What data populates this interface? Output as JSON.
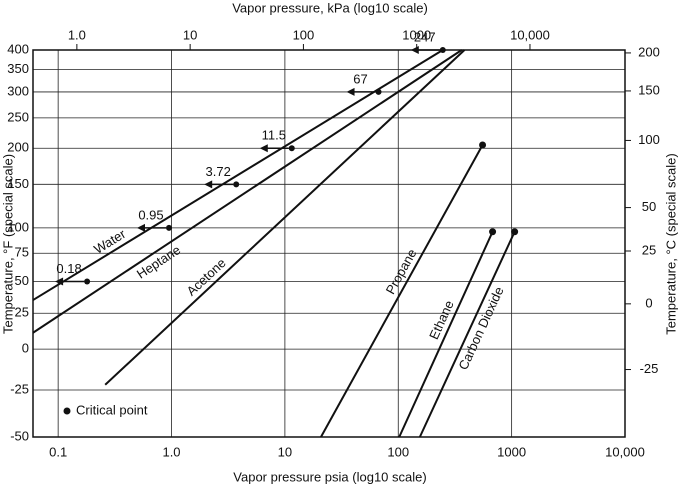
{
  "chart_data": {
    "type": "line",
    "top_axis_label": "Vapor pressure, kPa (log10 scale)",
    "x_label": "Vapor pressure psia (log10 scale)",
    "y_label": "Temperature, °F (special scale)",
    "y2_label": "Temperature, °C (special scale)",
    "critical_point_label": "Critical point",
    "xscale": "log",
    "yscale": "special",
    "grid": true,
    "color": "#111111",
    "xlim": [
      0.06,
      10000
    ],
    "xticks": [
      0.1,
      {
        "value": 1,
        "label": "1.0"
      },
      10,
      100,
      1000,
      {
        "value": 10000,
        "label": "10,000"
      }
    ],
    "x2lim": [
      0.41,
      69000
    ],
    "x2ticks": [
      {
        "value": 1,
        "label": "1.0"
      },
      10,
      100,
      1000,
      {
        "value": 10000,
        "label": "10,000"
      }
    ],
    "ylim": [
      -50,
      400
    ],
    "yticks": [
      400,
      350,
      300,
      250,
      200,
      150,
      100,
      75,
      50,
      25,
      0,
      -25,
      -50
    ],
    "y2lim": [
      -45.6,
      204.4
    ],
    "y2ticks": [
      200,
      150,
      100,
      50,
      25,
      0,
      -25
    ],
    "series": [
      {
        "name": "Water",
        "x": [
          0.06,
          247
        ],
        "values": [
          35,
          400
        ],
        "critical_point": false
      },
      {
        "name": "Heptane",
        "x": [
          0.06,
          363
        ],
        "values": [
          11,
          400
        ],
        "critical_point": false
      },
      {
        "name": "Acetone",
        "x": [
          0.26,
          384
        ],
        "values": [
          -22,
          400
        ],
        "critical_point": false
      },
      {
        "name": "Propane",
        "x": [
          20.8,
          554
        ],
        "values": [
          -50,
          205
        ],
        "critical_point": true
      },
      {
        "name": "Ethane",
        "x": [
          102,
          679
        ],
        "values": [
          -50,
          96
        ],
        "critical_point": true
      },
      {
        "name": "Carbon Dioxide",
        "x": [
          155,
          1063
        ],
        "values": [
          -50,
          96
        ],
        "critical_point": true
      }
    ],
    "water_points": [
      {
        "x": 0.18,
        "y": 50
      },
      {
        "x": 0.95,
        "y": 100
      },
      {
        "x": 3.72,
        "y": 150
      },
      {
        "x": 11.5,
        "y": 200
      },
      {
        "x": 67,
        "y": 300
      },
      {
        "x": 247,
        "y": 400
      }
    ]
  }
}
